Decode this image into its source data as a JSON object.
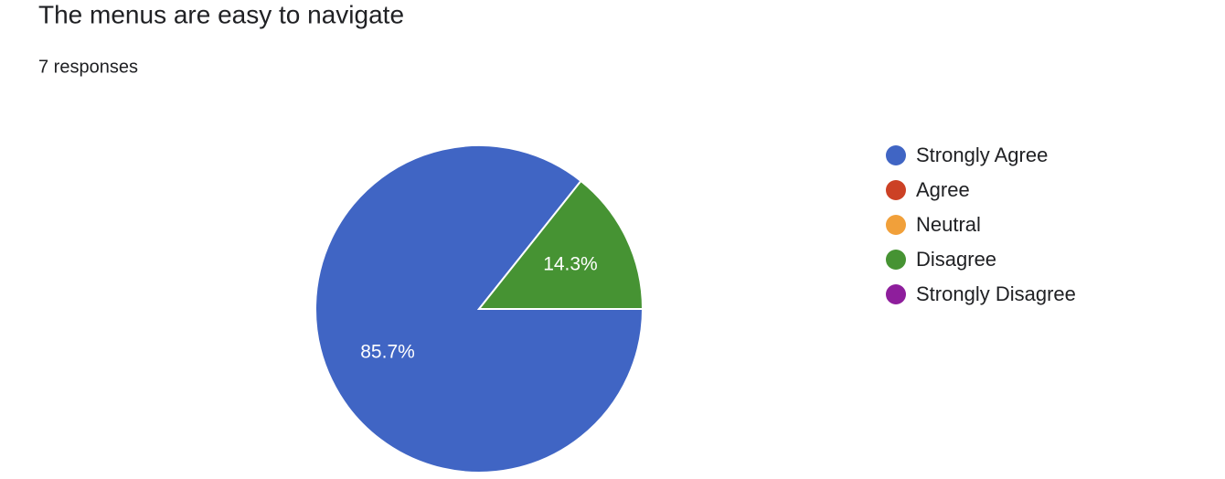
{
  "chart_data": {
    "type": "pie",
    "title": "The menus are easy to navigate",
    "subtitle": "7 responses",
    "categories": [
      "Strongly Agree",
      "Agree",
      "Neutral",
      "Disagree",
      "Strongly Disagree"
    ],
    "values": [
      85.7,
      0,
      0,
      14.3,
      0
    ],
    "value_labels": [
      "85.7%",
      null,
      null,
      "14.3%",
      null
    ],
    "colors": [
      "#4065c4",
      "#cc4125",
      "#f1a03a",
      "#469333",
      "#8e1e9c"
    ],
    "legend": "right"
  }
}
